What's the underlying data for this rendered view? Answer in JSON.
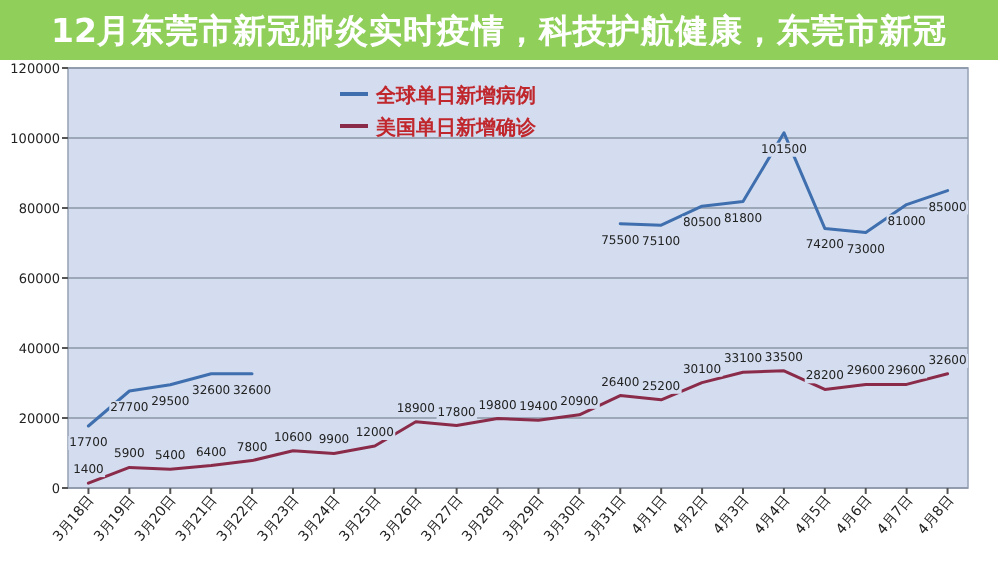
{
  "chart_data": {
    "type": "line",
    "title": "12月东莞市新冠肺炎实时疫情，科技护航健康，东莞市新冠",
    "categories": [
      "3月18日",
      "3月19日",
      "3月20日",
      "3月21日",
      "3月22日",
      "3月23日",
      "3月24日",
      "3月25日",
      "3月26日",
      "3月27日",
      "3月28日",
      "3月29日",
      "3月30日",
      "3月31日",
      "4月1日",
      "4月2日",
      "4月3日",
      "4月4日",
      "4月5日",
      "4月6日",
      "4月7日",
      "4月8日"
    ],
    "series": [
      {
        "name": "全球单日新增病例",
        "color": "#3f6fae",
        "values": [
          17700,
          27700,
          29500,
          32600,
          32600,
          null,
          null,
          null,
          null,
          null,
          null,
          null,
          null,
          75500,
          75100,
          80500,
          81800,
          101500,
          74200,
          73000,
          81000,
          85000
        ]
      },
      {
        "name": "美国单日新增确诊",
        "color": "#8b2b4a",
        "values": [
          1400,
          5900,
          5400,
          6400,
          7800,
          10600,
          9900,
          12000,
          18900,
          17800,
          19800,
          19400,
          20900,
          26400,
          25200,
          30100,
          33100,
          33500,
          28200,
          29600,
          29600,
          32600
        ]
      }
    ],
    "ylim": [
      0,
      120000
    ],
    "yticks": [
      0,
      20000,
      40000,
      60000,
      80000,
      100000,
      120000
    ],
    "grid": "y",
    "legend": "top",
    "data_labels": true,
    "marker": "none",
    "line_style": "solid"
  }
}
